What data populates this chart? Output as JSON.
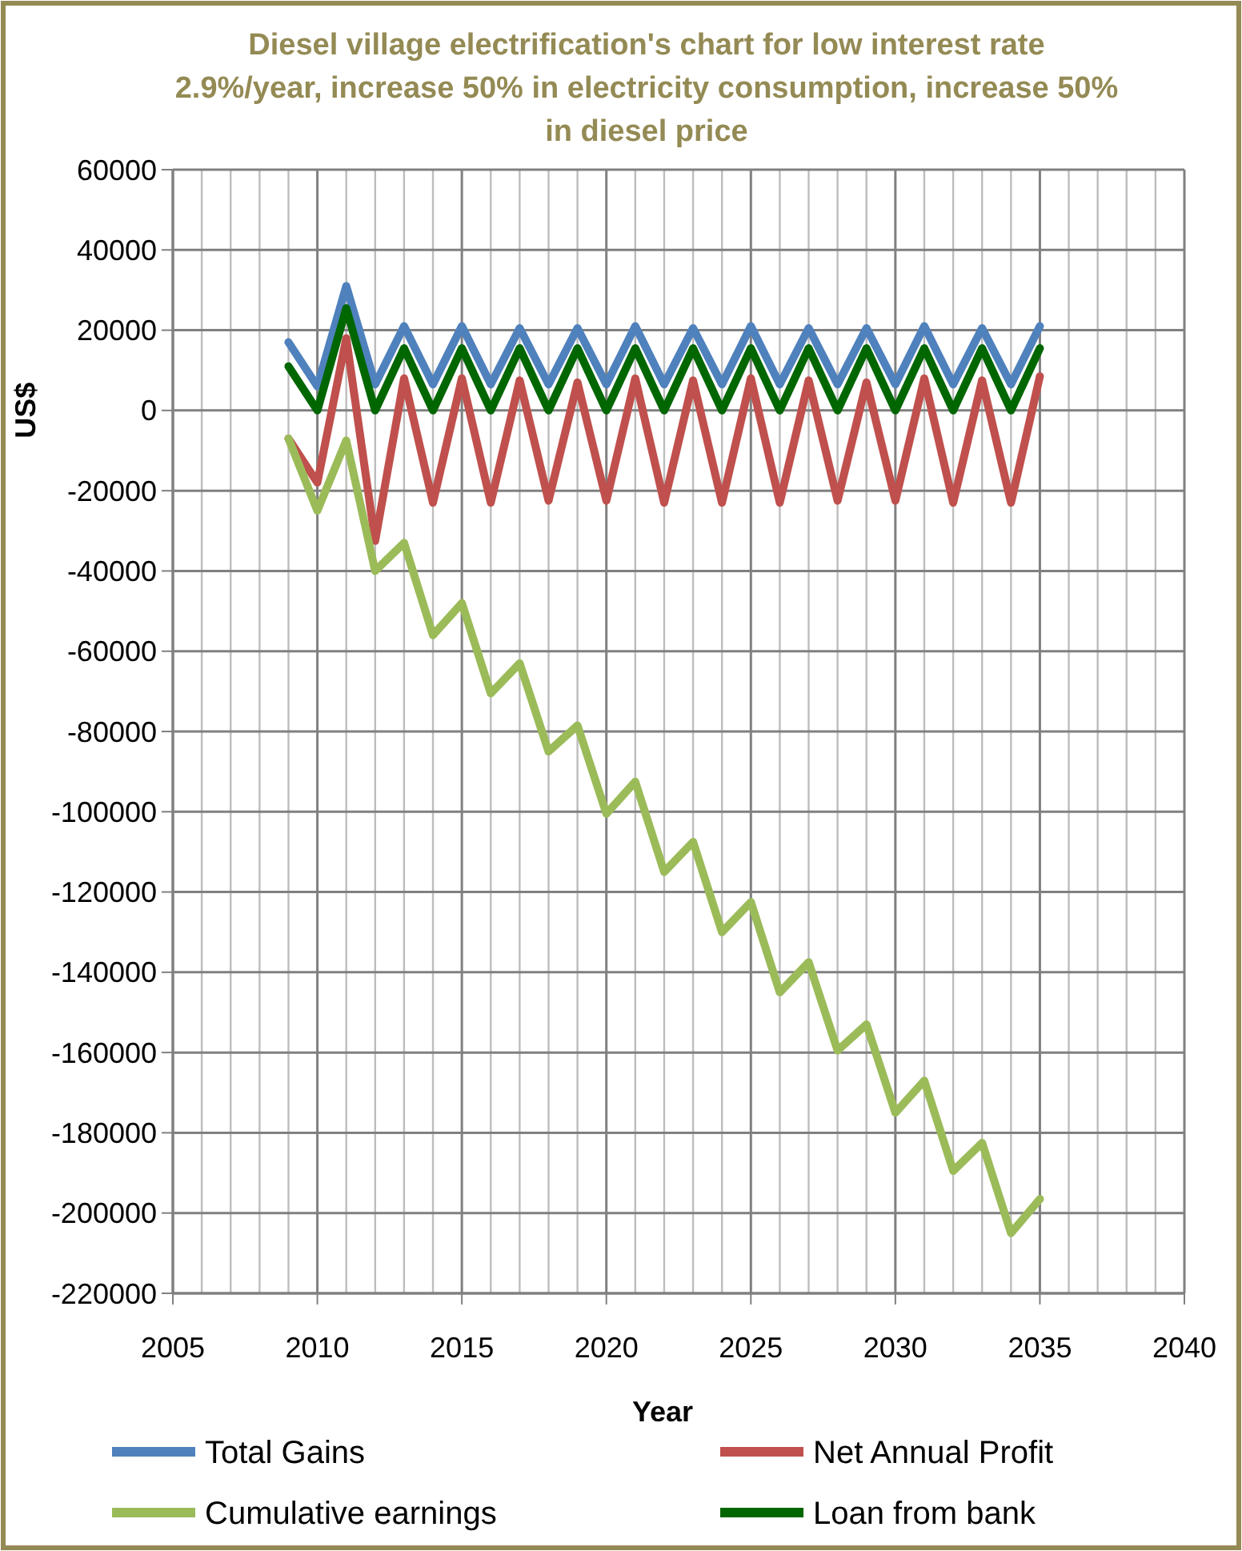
{
  "chart_data": {
    "type": "line",
    "title": "Diesel village electrification's chart for low interest rate 2.9%/year, increase 50% in electricity consumption, increase 50% in diesel price",
    "xlabel": "Year",
    "ylabel": "US$",
    "x": [
      2009,
      2010,
      2011,
      2012,
      2013,
      2014,
      2015,
      2016,
      2017,
      2018,
      2019,
      2020,
      2021,
      2022,
      2023,
      2024,
      2025,
      2026,
      2027,
      2028,
      2029,
      2030,
      2031,
      2032,
      2033,
      2034,
      2035
    ],
    "series": [
      {
        "name": "Total Gains",
        "color": "#4f81bd",
        "values": [
          17000,
          6000,
          31000,
          6500,
          21000,
          6500,
          21000,
          6500,
          20500,
          6500,
          20500,
          6500,
          21000,
          6500,
          20500,
          6500,
          21000,
          6500,
          20500,
          6500,
          20500,
          6500,
          21000,
          6500,
          20500,
          6500,
          21000
        ]
      },
      {
        "name": "Net Annual Profit",
        "color": "#c0504d",
        "values": [
          -7000,
          -18000,
          18000,
          -32500,
          8000,
          -23000,
          8000,
          -23000,
          7500,
          -22500,
          7000,
          -22500,
          8000,
          -23000,
          7500,
          -23000,
          8000,
          -23000,
          7500,
          -22500,
          7000,
          -22500,
          8000,
          -23000,
          7500,
          -23000,
          8500
        ]
      },
      {
        "name": "Cumulative earnings",
        "color": "#9bbb59",
        "values": [
          -7000,
          -25000,
          -7500,
          -40000,
          -33000,
          -56000,
          -48000,
          -70500,
          -63000,
          -85000,
          -78500,
          -100500,
          -92500,
          -115000,
          -107500,
          -130000,
          -122500,
          -145000,
          -137500,
          -159500,
          -153000,
          -175000,
          -167000,
          -189500,
          -182500,
          -205000,
          -196500
        ]
      },
      {
        "name": "Loan from bank",
        "color": "#006600",
        "values": [
          11000,
          0,
          25500,
          0,
          15500,
          0,
          15500,
          0,
          15500,
          0,
          15500,
          0,
          15500,
          0,
          15500,
          0,
          15500,
          0,
          15500,
          0,
          15500,
          0,
          15500,
          0,
          15500,
          0,
          15500
        ]
      }
    ],
    "xlim": [
      2005,
      2040
    ],
    "xticks": [
      2005,
      2010,
      2015,
      2020,
      2025,
      2030,
      2035,
      2040
    ],
    "ylim": [
      -220000,
      60000
    ],
    "yticks": [
      -220000,
      -200000,
      -180000,
      -160000,
      -140000,
      -120000,
      -100000,
      -80000,
      -60000,
      -40000,
      -20000,
      0,
      20000,
      40000,
      60000
    ],
    "grid": true,
    "legend": "bottom",
    "marker": "none",
    "line_style": "solid"
  }
}
